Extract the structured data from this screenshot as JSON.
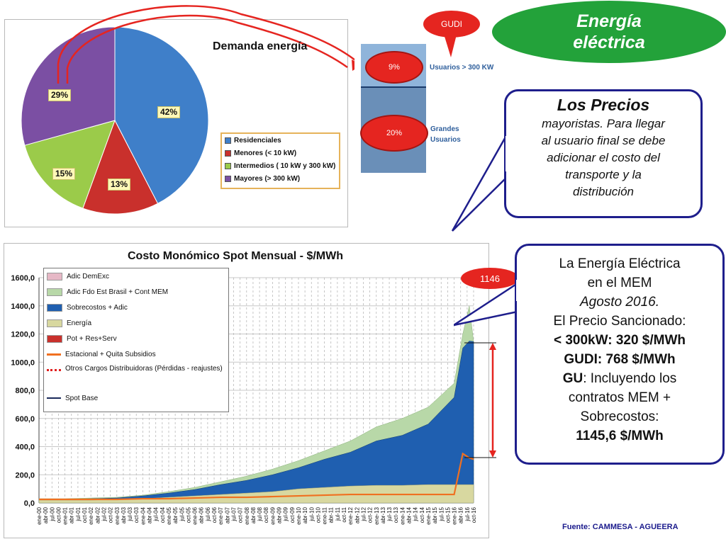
{
  "title": {
    "line1": "Energía",
    "line2": "eléctrica"
  },
  "gudi_label": "GUDI",
  "pie": {
    "title": "Demanda energía",
    "slices": [
      {
        "name": "Residenciales",
        "pct": 42,
        "label": "42%",
        "color": "#3f7fc9"
      },
      {
        "name": "Menores (< 10 kW)",
        "pct": 13,
        "label": "13%",
        "color": "#c9302c"
      },
      {
        "name": "Intermedios ( 10 kW y 300 kW)",
        "pct": 15,
        "label": "15%",
        "color": "#9bcb4a"
      },
      {
        "name": "Mayores (> 300 kW)",
        "pct": 29,
        "label": "29%",
        "color": "#7b4fa3"
      }
    ]
  },
  "bar_strip": {
    "top_pct": "9%",
    "bottom_pct": "20%",
    "top_label": "Usuarios > 300 KW",
    "bottom_label_1": "Grandes",
    "bottom_label_2": "Usuarios",
    "colors": {
      "top": "#8fb4da",
      "bottom": "#4e79a8"
    }
  },
  "callout1": {
    "title": "Los  Precios",
    "lines": [
      "mayoristas. Para llegar",
      "al usuario final se debe",
      "adicionar el costo del",
      "transporte y la",
      "distribución"
    ]
  },
  "callout2": {
    "l1": "La Energía Eléctrica",
    "l2": "en el MEM",
    "l3": "Agosto  2016.",
    "l4": "El Precio Sancionado:",
    "l5": "< 300kW: 320 $/MWh",
    "l6": "GUDI: 768 $/MWh",
    "l7a": "GU",
    "l7b": ": Incluyendo los",
    "l8": "contratos MEM +",
    "l9": "Sobrecostos:",
    "l10": "1145,6 $/MWh"
  },
  "badge": "1146",
  "source": "Fuente: CAMMESA - AGUEERA",
  "chart_data": {
    "type": "area",
    "title": "Costo Monómico Spot Mensual - $/MWh",
    "ylim": [
      0,
      1600
    ],
    "yticks": [
      "1600,0",
      "1400,0",
      "1200,0",
      "1000,0",
      "800,0",
      "600,0",
      "400,0",
      "200,0",
      "0,0"
    ],
    "x_range": [
      "2000-01",
      "2016-10"
    ],
    "x_labels": [
      "ene-00",
      "abr-00",
      "jul-00",
      "oct-00",
      "ene-01",
      "abr-01",
      "jul-01",
      "oct-01",
      "ene-02",
      "abr-02",
      "jul-02",
      "oct-02",
      "ene-03",
      "abr-03",
      "jul-03",
      "oct-03",
      "ene-04",
      "abr-04",
      "jul-04",
      "oct-04",
      "ene-05",
      "abr-05",
      "jul-05",
      "oct-05",
      "ene-06",
      "abr-06",
      "jul-06",
      "oct-06",
      "ene-07",
      "abr-07",
      "jul-07",
      "oct-07",
      "ene-08",
      "abr-08",
      "jul-08",
      "oct-08",
      "ene-09",
      "abr-09",
      "jul-09",
      "oct-09",
      "ene-10",
      "abr-10",
      "jul-10",
      "oct-10",
      "ene-11",
      "abr-11",
      "jul-11",
      "oct-11",
      "ene-12",
      "abr-12",
      "jul-12",
      "oct-12",
      "ene-13",
      "abr-13",
      "jul-13",
      "oct-13",
      "ene-14",
      "abr-14",
      "jul-14",
      "oct-14",
      "ene-15",
      "abr-15",
      "jul-15",
      "oct-15",
      "ene-16",
      "abr-16",
      "jul-16",
      "oct-16"
    ],
    "legend": [
      {
        "name": "Adic DemExc",
        "color": "#e6b8c6"
      },
      {
        "name": "Adic Fdo Est  Brasil + Cont MEM",
        "color": "#b8d8a8"
      },
      {
        "name": "Sobrecostos + Adic",
        "color": "#1f5fb0"
      },
      {
        "name": "Energía",
        "color": "#d8d8a0"
      },
      {
        "name": "Pot + Res+Serv",
        "color": "#c9302c"
      },
      {
        "name": "Estacional + Quita Subsidios",
        "color": "#f07020"
      },
      {
        "name": "Otros Cargos Distribuidoras (Pérdidas - reajustes)",
        "color": "#e02020"
      },
      {
        "name": "Spot Base",
        "color": "#1a2a5a"
      }
    ],
    "series_approx": {
      "x": [
        "2000-01",
        "2001-01",
        "2002-01",
        "2003-01",
        "2004-01",
        "2005-01",
        "2006-01",
        "2007-01",
        "2008-01",
        "2009-01",
        "2010-01",
        "2011-01",
        "2012-01",
        "2013-01",
        "2014-01",
        "2015-01",
        "2016-01",
        "2016-05",
        "2016-08",
        "2016-10"
      ],
      "total": [
        30,
        30,
        35,
        40,
        55,
        80,
        110,
        150,
        190,
        240,
        300,
        370,
        440,
        540,
        600,
        680,
        850,
        1200,
        1400,
        1146
      ],
      "sobrecostos_top": [
        25,
        25,
        30,
        35,
        50,
        70,
        95,
        130,
        160,
        200,
        250,
        310,
        360,
        440,
        480,
        560,
        750,
        1100,
        1150,
        1146
      ],
      "energia_top": [
        20,
        20,
        20,
        25,
        30,
        40,
        50,
        60,
        70,
        80,
        100,
        110,
        120,
        125,
        125,
        130,
        130,
        130,
        130,
        130
      ],
      "estacional": [
        25,
        25,
        25,
        25,
        30,
        30,
        35,
        40,
        40,
        45,
        50,
        55,
        60,
        60,
        60,
        60,
        60,
        350,
        320,
        310
      ]
    },
    "annotation": "1146"
  }
}
